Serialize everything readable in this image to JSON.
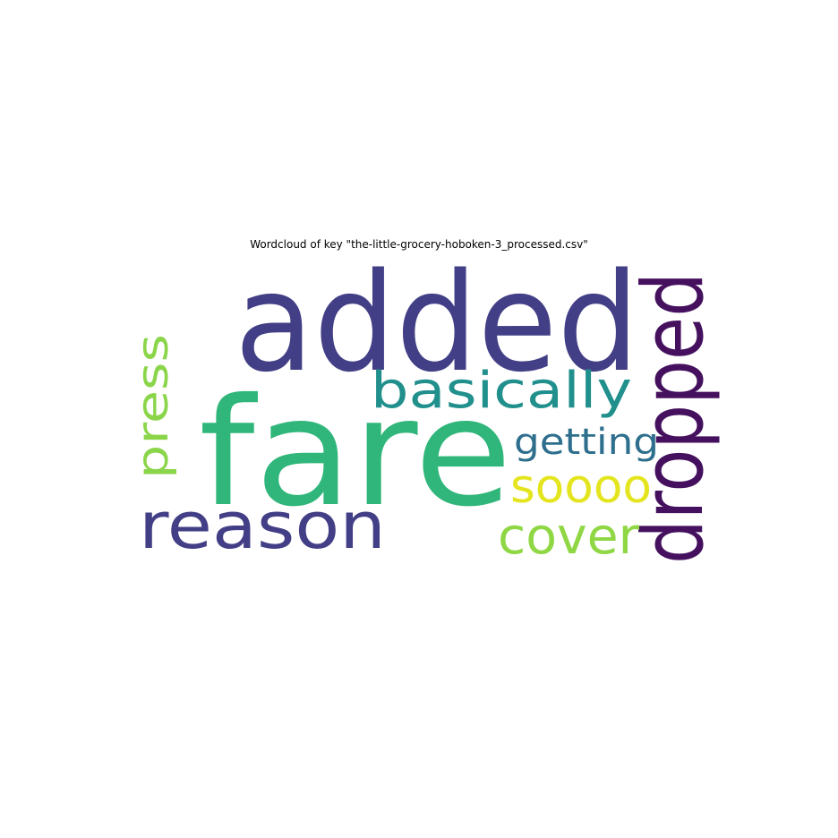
{
  "chart_data": {
    "type": "wordcloud",
    "title": "Wordcloud of key \"the-little-grocery-hoboken-3_processed.csv\"",
    "words": [
      {
        "text": "added",
        "color": "#433f86"
      },
      {
        "text": "fare",
        "color": "#30b67a"
      },
      {
        "text": "dropped",
        "color": "#45115f"
      },
      {
        "text": "basically",
        "color": "#21908d"
      },
      {
        "text": "reason",
        "color": "#433f86"
      },
      {
        "text": "press",
        "color": "#8ad549"
      },
      {
        "text": "getting",
        "color": "#2e6f8e"
      },
      {
        "text": "soooo",
        "color": "#e4e51e"
      },
      {
        "text": "cover",
        "color": "#8fd744"
      }
    ]
  }
}
